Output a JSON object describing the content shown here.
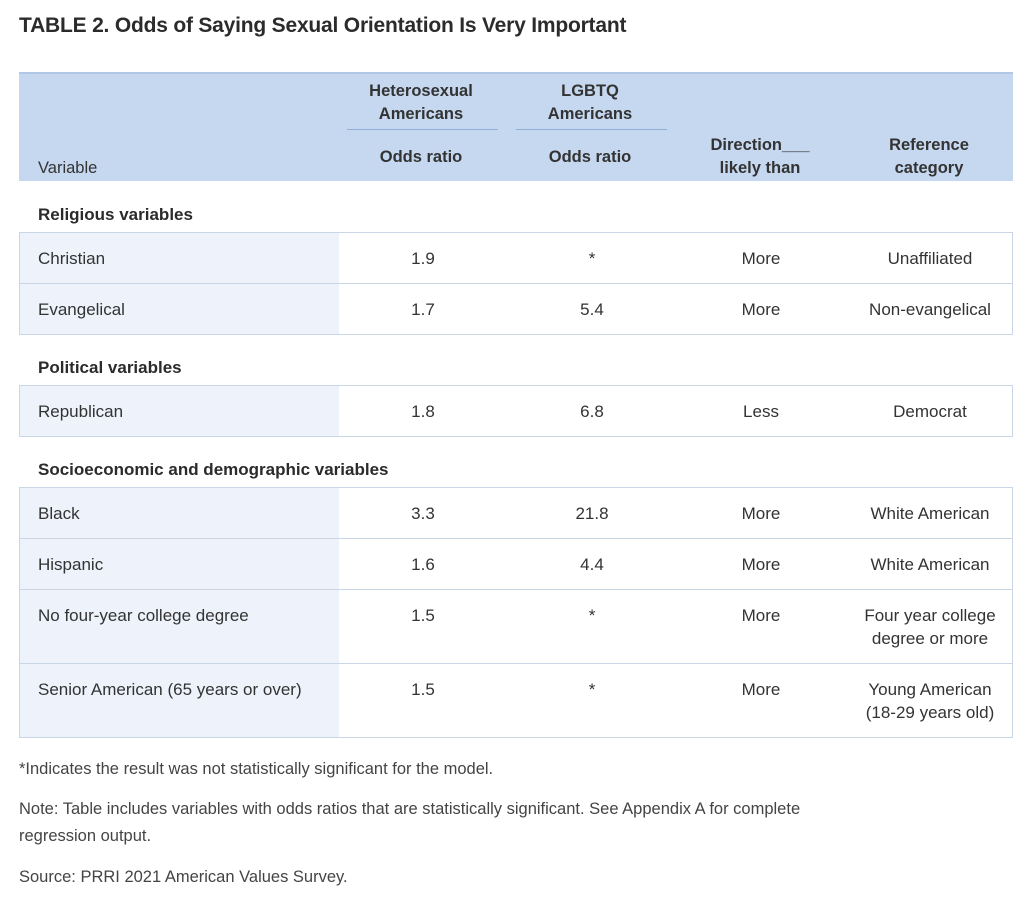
{
  "title": "TABLE 2. Odds of Saying Sexual Orientation Is Very Important",
  "header": {
    "variable": "Variable",
    "group1_line1": "Heterosexual",
    "group1_line2": "Americans",
    "group2_line1": "LGBTQ",
    "group2_line2": "Americans",
    "odds_ratio_1": "Odds ratio",
    "odds_ratio_2": "Odds ratio",
    "direction_line1": "Direction___",
    "direction_line2": "likely than",
    "reference_line1": "Reference",
    "reference_line2": "category"
  },
  "sections": {
    "religious": "Religious variables",
    "political": "Political variables",
    "socio": "Socioeconomic and demographic variables"
  },
  "rows": [
    {
      "variable": "Christian",
      "hetero": "1.9",
      "lgbtq": "*",
      "direction": "More",
      "reference": "Unaffiliated",
      "reference2": ""
    },
    {
      "variable": "Evangelical",
      "hetero": "1.7",
      "lgbtq": "5.4",
      "direction": "More",
      "reference": "Non-evangelical",
      "reference2": ""
    },
    {
      "variable": "Republican",
      "hetero": "1.8",
      "lgbtq": "6.8",
      "direction": "Less",
      "reference": "Democrat",
      "reference2": ""
    },
    {
      "variable": "Black",
      "hetero": "3.3",
      "lgbtq": "21.8",
      "direction": "More",
      "reference": "White American",
      "reference2": ""
    },
    {
      "variable": "Hispanic",
      "hetero": "1.6",
      "lgbtq": "4.4",
      "direction": "More",
      "reference": "White American",
      "reference2": ""
    },
    {
      "variable": "No four-year college degree",
      "hetero": "1.5",
      "lgbtq": "*",
      "direction": "More",
      "reference": "Four year college",
      "reference2": "degree or more"
    },
    {
      "variable": "Senior American (65 years or over)",
      "hetero": "1.5",
      "lgbtq": "*",
      "direction": "More",
      "reference": "Young American",
      "reference2": "(18-29 years old)"
    }
  ],
  "footnotes": {
    "significance": "*Indicates the result was not statistically significant for the model.",
    "note_line1": "Note: Table includes variables with odds ratios that are statistically significant. See Appendix A for complete",
    "note_line2": "regression output.",
    "source": "Source: PRRI 2021 American Values Survey."
  }
}
